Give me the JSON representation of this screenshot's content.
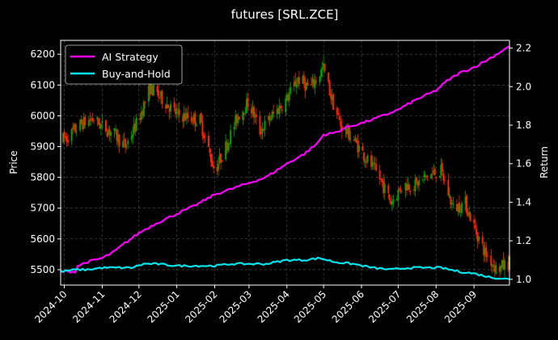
{
  "chart_data": {
    "type": "line",
    "title": "futures [SRL.ZCE]",
    "ylabel_left": "Price",
    "ylabel_right": "Return",
    "xlabel": "",
    "x_ticks": [
      "2024-10",
      "2024-11",
      "2024-12",
      "2025-01",
      "2025-02",
      "2025-03",
      "2025-04",
      "2025-05",
      "2025-06",
      "2025-07",
      "2025-08",
      "2025-09"
    ],
    "x_range": [
      "2024-09-28",
      "2025-09-30"
    ],
    "y_left_ticks": [
      5500,
      5600,
      5700,
      5800,
      5900,
      6000,
      6100,
      6200
    ],
    "y_left_range": [
      5450,
      6245
    ],
    "y_right_ticks": [
      1.0,
      1.2,
      1.4,
      1.6,
      1.8,
      2.0,
      2.2
    ],
    "y_right_range": [
      0.97,
      2.24
    ],
    "grid": true,
    "legend_position": "top-left",
    "colors": {
      "ai_strategy": "#ff00ff",
      "buy_and_hold": "#00e5ee",
      "candle_up": "#00a000",
      "candle_down": "#ff2000",
      "grid": "#555555"
    },
    "series": [
      {
        "name": "AI Strategy",
        "axis": "right",
        "points": [
          [
            "2024-09-28",
            1.04
          ],
          [
            "2024-10-10",
            1.04
          ],
          [
            "2024-10-12",
            1.07
          ],
          [
            "2024-10-20",
            1.09
          ],
          [
            "2024-11-01",
            1.11
          ],
          [
            "2024-11-10",
            1.14
          ],
          [
            "2024-11-18",
            1.18
          ],
          [
            "2024-12-01",
            1.24
          ],
          [
            "2024-12-15",
            1.29
          ],
          [
            "2025-01-01",
            1.34
          ],
          [
            "2025-01-15",
            1.38
          ],
          [
            "2025-02-01",
            1.44
          ],
          [
            "2025-02-15",
            1.47
          ],
          [
            "2025-03-01",
            1.5
          ],
          [
            "2025-03-15",
            1.53
          ],
          [
            "2025-04-01",
            1.6
          ],
          [
            "2025-04-15",
            1.65
          ],
          [
            "2025-04-25",
            1.7
          ],
          [
            "2025-05-01",
            1.75
          ],
          [
            "2025-05-10",
            1.76
          ],
          [
            "2025-05-20",
            1.79
          ],
          [
            "2025-06-01",
            1.81
          ],
          [
            "2025-06-15",
            1.84
          ],
          [
            "2025-07-01",
            1.88
          ],
          [
            "2025-07-15",
            1.93
          ],
          [
            "2025-08-01",
            1.98
          ],
          [
            "2025-08-10",
            2.03
          ],
          [
            "2025-08-20",
            2.07
          ],
          [
            "2025-09-01",
            2.1
          ],
          [
            "2025-09-15",
            2.15
          ],
          [
            "2025-09-30",
            2.21
          ]
        ]
      },
      {
        "name": "Buy-and-Hold",
        "axis": "right",
        "points": [
          [
            "2024-09-28",
            1.04
          ],
          [
            "2024-10-10",
            1.05
          ],
          [
            "2024-10-20",
            1.05
          ],
          [
            "2024-11-01",
            1.06
          ],
          [
            "2024-11-15",
            1.06
          ],
          [
            "2024-11-25",
            1.06
          ],
          [
            "2024-12-05",
            1.08
          ],
          [
            "2024-12-15",
            1.08
          ],
          [
            "2025-01-01",
            1.07
          ],
          [
            "2025-01-15",
            1.07
          ],
          [
            "2025-02-01",
            1.07
          ],
          [
            "2025-02-15",
            1.08
          ],
          [
            "2025-03-01",
            1.08
          ],
          [
            "2025-03-15",
            1.08
          ],
          [
            "2025-04-01",
            1.1
          ],
          [
            "2025-04-15",
            1.1
          ],
          [
            "2025-04-28",
            1.11
          ],
          [
            "2025-05-10",
            1.09
          ],
          [
            "2025-05-25",
            1.08
          ],
          [
            "2025-06-10",
            1.06
          ],
          [
            "2025-06-25",
            1.05
          ],
          [
            "2025-07-10",
            1.06
          ],
          [
            "2025-07-25",
            1.06
          ],
          [
            "2025-08-05",
            1.06
          ],
          [
            "2025-08-20",
            1.04
          ],
          [
            "2025-09-01",
            1.03
          ],
          [
            "2025-09-15",
            1.01
          ],
          [
            "2025-09-30",
            1.0
          ]
        ]
      }
    ],
    "price_path": [
      [
        "2024-09-28",
        5920
      ],
      [
        "2024-10-05",
        5935
      ],
      [
        "2024-10-15",
        5975
      ],
      [
        "2024-10-25",
        5990
      ],
      [
        "2024-11-01",
        5965
      ],
      [
        "2024-11-10",
        5945
      ],
      [
        "2024-11-20",
        5900
      ],
      [
        "2024-12-01",
        5990
      ],
      [
        "2024-12-10",
        6090
      ],
      [
        "2024-12-20",
        6055
      ],
      [
        "2025-01-01",
        6005
      ],
      [
        "2025-01-10",
        5995
      ],
      [
        "2025-01-20",
        5985
      ],
      [
        "2025-02-01",
        5820
      ],
      [
        "2025-02-10",
        5900
      ],
      [
        "2025-02-20",
        6000
      ],
      [
        "2025-03-01",
        6045
      ],
      [
        "2025-03-10",
        5950
      ],
      [
        "2025-03-20",
        6000
      ],
      [
        "2025-04-01",
        6055
      ],
      [
        "2025-04-10",
        6120
      ],
      [
        "2025-04-20",
        6090
      ],
      [
        "2025-05-01",
        6155
      ],
      [
        "2025-05-08",
        6050
      ],
      [
        "2025-05-15",
        5970
      ],
      [
        "2025-05-25",
        5925
      ],
      [
        "2025-06-05",
        5860
      ],
      [
        "2025-06-15",
        5805
      ],
      [
        "2025-06-25",
        5720
      ],
      [
        "2025-07-05",
        5775
      ],
      [
        "2025-07-15",
        5775
      ],
      [
        "2025-07-25",
        5805
      ],
      [
        "2025-08-05",
        5820
      ],
      [
        "2025-08-15",
        5700
      ],
      [
        "2025-08-25",
        5715
      ],
      [
        "2025-09-01",
        5640
      ],
      [
        "2025-09-10",
        5555
      ],
      [
        "2025-09-20",
        5500
      ],
      [
        "2025-09-30",
        5525
      ]
    ]
  }
}
